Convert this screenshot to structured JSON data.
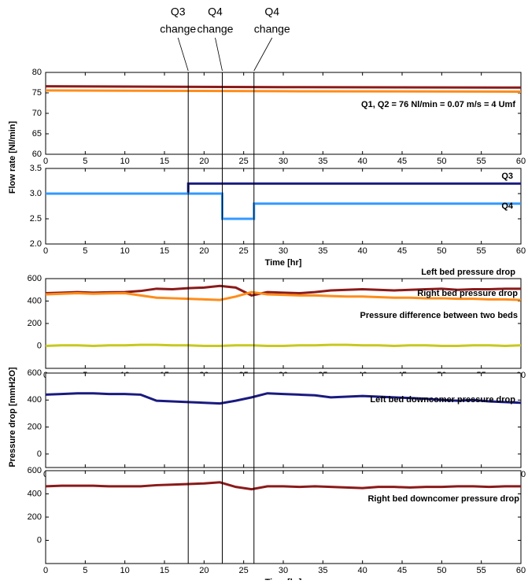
{
  "y_labels": [
    {
      "text": "Flow rate [Nl/min]"
    },
    {
      "text": "Pressure drop [mmH2O]"
    }
  ],
  "events": [
    {
      "x": 18,
      "label": "Q3",
      "text": "change"
    },
    {
      "x": 22.3,
      "label": "Q4",
      "text": "change"
    },
    {
      "x": 26.3,
      "label": "Q4",
      "text": "change"
    }
  ],
  "chart_data": [
    {
      "type": "line",
      "annotation": "Q1, Q2 = 76 Nl/min = 0.07 m/s = 4 Umf",
      "x": [
        0,
        30,
        60
      ],
      "series": [
        {
          "color": "#8b1a1a",
          "values": [
            76.6,
            76.4,
            76.3
          ]
        },
        {
          "color": "#ff8c1a",
          "values": [
            75.6,
            75.4,
            75.3
          ]
        }
      ],
      "xlim": [
        0,
        60
      ],
      "xticks": [
        0,
        5,
        10,
        15,
        20,
        25,
        30,
        35,
        40,
        45,
        50,
        55,
        60
      ],
      "ylim": [
        60,
        80
      ],
      "yticks": [
        60,
        65,
        70,
        75,
        80
      ]
    },
    {
      "type": "line",
      "x_label": "Time [hr]",
      "x": [
        0,
        18,
        18,
        22.3,
        22.3,
        26.3,
        26.3,
        60
      ],
      "series": [
        {
          "name": "Q3",
          "color": "#1a1a80",
          "values": [
            3.0,
            3.0,
            3.2,
            3.2,
            3.2,
            3.2,
            3.2,
            3.2
          ]
        },
        {
          "name": "Q4",
          "color": "#3399ff",
          "values": [
            3.0,
            3.0,
            3.0,
            3.0,
            2.5,
            2.5,
            2.8,
            2.8
          ]
        }
      ],
      "xlim": [
        0,
        60
      ],
      "xticks": [
        0,
        5,
        10,
        15,
        20,
        25,
        30,
        35,
        40,
        45,
        50,
        55,
        60
      ],
      "ylim": [
        2.0,
        3.5
      ],
      "yticks": [
        {
          "value": 2,
          "label": "2.0"
        },
        2.5,
        {
          "value": 3,
          "label": "3.0"
        },
        3.5
      ]
    },
    {
      "type": "line",
      "x": [
        0,
        2,
        4,
        6,
        8,
        10,
        12,
        14,
        16,
        18,
        20,
        22,
        24,
        26,
        28,
        30,
        32,
        34,
        36,
        38,
        40,
        42,
        44,
        46,
        48,
        50,
        52,
        54,
        56,
        58,
        60
      ],
      "series": [
        {
          "name": "Left bed pressure drop",
          "color": "#8b1a1a",
          "values": [
            470,
            475,
            480,
            475,
            478,
            480,
            490,
            510,
            505,
            515,
            520,
            535,
            520,
            450,
            480,
            475,
            470,
            480,
            495,
            500,
            505,
            500,
            495,
            500,
            505,
            510,
            500,
            505,
            505,
            510,
            510
          ]
        },
        {
          "name": "Right bed pressure drop",
          "color": "#ff8c1a",
          "values": [
            460,
            465,
            470,
            465,
            468,
            470,
            450,
            430,
            425,
            420,
            415,
            410,
            440,
            480,
            460,
            455,
            450,
            450,
            445,
            440,
            440,
            435,
            430,
            430,
            425,
            425,
            420,
            420,
            415,
            415,
            410
          ]
        },
        {
          "name": "Pressure difference between two beds",
          "color": "#c8c820",
          "values": [
            0,
            5,
            5,
            0,
            5,
            5,
            10,
            10,
            5,
            5,
            0,
            0,
            5,
            5,
            0,
            0,
            5,
            5,
            10,
            10,
            5,
            5,
            0,
            5,
            5,
            0,
            0,
            5,
            5,
            0,
            5
          ]
        }
      ],
      "xlim": [
        0,
        60
      ],
      "xticks": [
        0,
        5,
        10,
        15,
        20,
        25,
        30,
        35,
        40,
        45,
        50,
        55,
        60
      ],
      "ylim": [
        -200,
        600
      ],
      "yticks": [
        0,
        200,
        400,
        600
      ]
    },
    {
      "type": "line",
      "x": [
        0,
        2,
        4,
        6,
        8,
        10,
        12,
        14,
        16,
        18,
        20,
        22,
        24,
        26,
        28,
        30,
        32,
        34,
        36,
        38,
        40,
        42,
        44,
        46,
        48,
        50,
        52,
        54,
        56,
        58,
        60
      ],
      "series": [
        {
          "name": "Left bed downcomer pressure drop",
          "color": "#1a1a80",
          "values": [
            440,
            445,
            450,
            450,
            445,
            445,
            440,
            395,
            390,
            385,
            380,
            375,
            395,
            420,
            450,
            445,
            440,
            435,
            420,
            425,
            430,
            425,
            420,
            415,
            410,
            400,
            395,
            400,
            390,
            385,
            380
          ]
        }
      ],
      "xlim": [
        0,
        60
      ],
      "xticks": [
        0,
        5,
        10,
        15,
        20,
        25,
        30,
        35,
        40,
        45,
        50,
        55,
        60
      ],
      "ylim": [
        -100,
        600
      ],
      "yticks": [
        0,
        200,
        400,
        600
      ]
    },
    {
      "type": "line",
      "x_label": "Time [hr]",
      "x": [
        0,
        2,
        4,
        6,
        8,
        10,
        12,
        14,
        16,
        18,
        20,
        22,
        24,
        26,
        28,
        30,
        32,
        34,
        36,
        38,
        40,
        42,
        44,
        46,
        48,
        50,
        52,
        54,
        56,
        58,
        60
      ],
      "series": [
        {
          "name": "Right bed downcomer pressure drop",
          "color": "#8b1a1a",
          "values": [
            465,
            470,
            470,
            470,
            465,
            465,
            465,
            475,
            480,
            485,
            490,
            500,
            460,
            440,
            465,
            465,
            460,
            465,
            460,
            455,
            450,
            460,
            460,
            455,
            460,
            460,
            465,
            465,
            460,
            465,
            465
          ]
        }
      ],
      "xlim": [
        0,
        60
      ],
      "xticks": [
        0,
        5,
        10,
        15,
        20,
        25,
        30,
        35,
        40,
        45,
        50,
        55,
        60
      ],
      "ylim": [
        -200,
        600
      ],
      "yticks": [
        0,
        200,
        400,
        600
      ]
    }
  ]
}
